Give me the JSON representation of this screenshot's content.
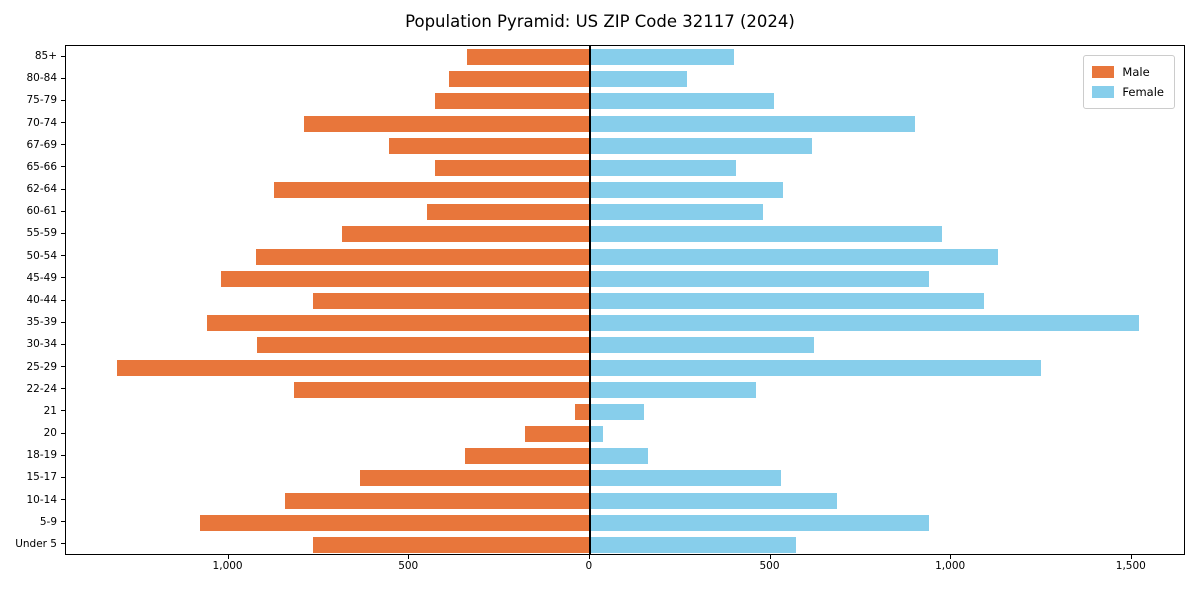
{
  "chart_data": {
    "type": "bar",
    "orientation": "horizontal-pyramid",
    "title": "Population Pyramid: US ZIP Code 32117 (2024)",
    "categories": [
      "85+",
      "80-84",
      "75-79",
      "70-74",
      "67-69",
      "65-66",
      "62-64",
      "60-61",
      "55-59",
      "50-54",
      "45-49",
      "40-44",
      "35-39",
      "30-34",
      "25-29",
      "22-24",
      "21",
      "20",
      "18-19",
      "15-17",
      "10-14",
      "5-9",
      "Under 5"
    ],
    "series": [
      {
        "name": "Male",
        "side": "left",
        "color": "#e8763b",
        "values": [
          340,
          390,
          430,
          790,
          555,
          430,
          875,
          450,
          685,
          925,
          1020,
          765,
          1060,
          920,
          1310,
          820,
          40,
          180,
          345,
          635,
          845,
          1080,
          765
        ]
      },
      {
        "name": "Female",
        "side": "right",
        "color": "#87ceeb",
        "values": [
          400,
          270,
          510,
          900,
          615,
          405,
          535,
          480,
          975,
          1130,
          940,
          1090,
          1520,
          620,
          1250,
          460,
          150,
          35,
          160,
          530,
          685,
          940,
          570
        ]
      }
    ],
    "xlim": [
      -1450,
      1650
    ],
    "xticks": [
      {
        "value": -1000,
        "label": "1,000"
      },
      {
        "value": -500,
        "label": "500"
      },
      {
        "value": 0,
        "label": "0"
      },
      {
        "value": 500,
        "label": "500"
      },
      {
        "value": 1000,
        "label": "1,000"
      },
      {
        "value": 1500,
        "label": "1,500"
      }
    ],
    "grid": false,
    "legend_position": "upper right",
    "zero_line": true
  }
}
